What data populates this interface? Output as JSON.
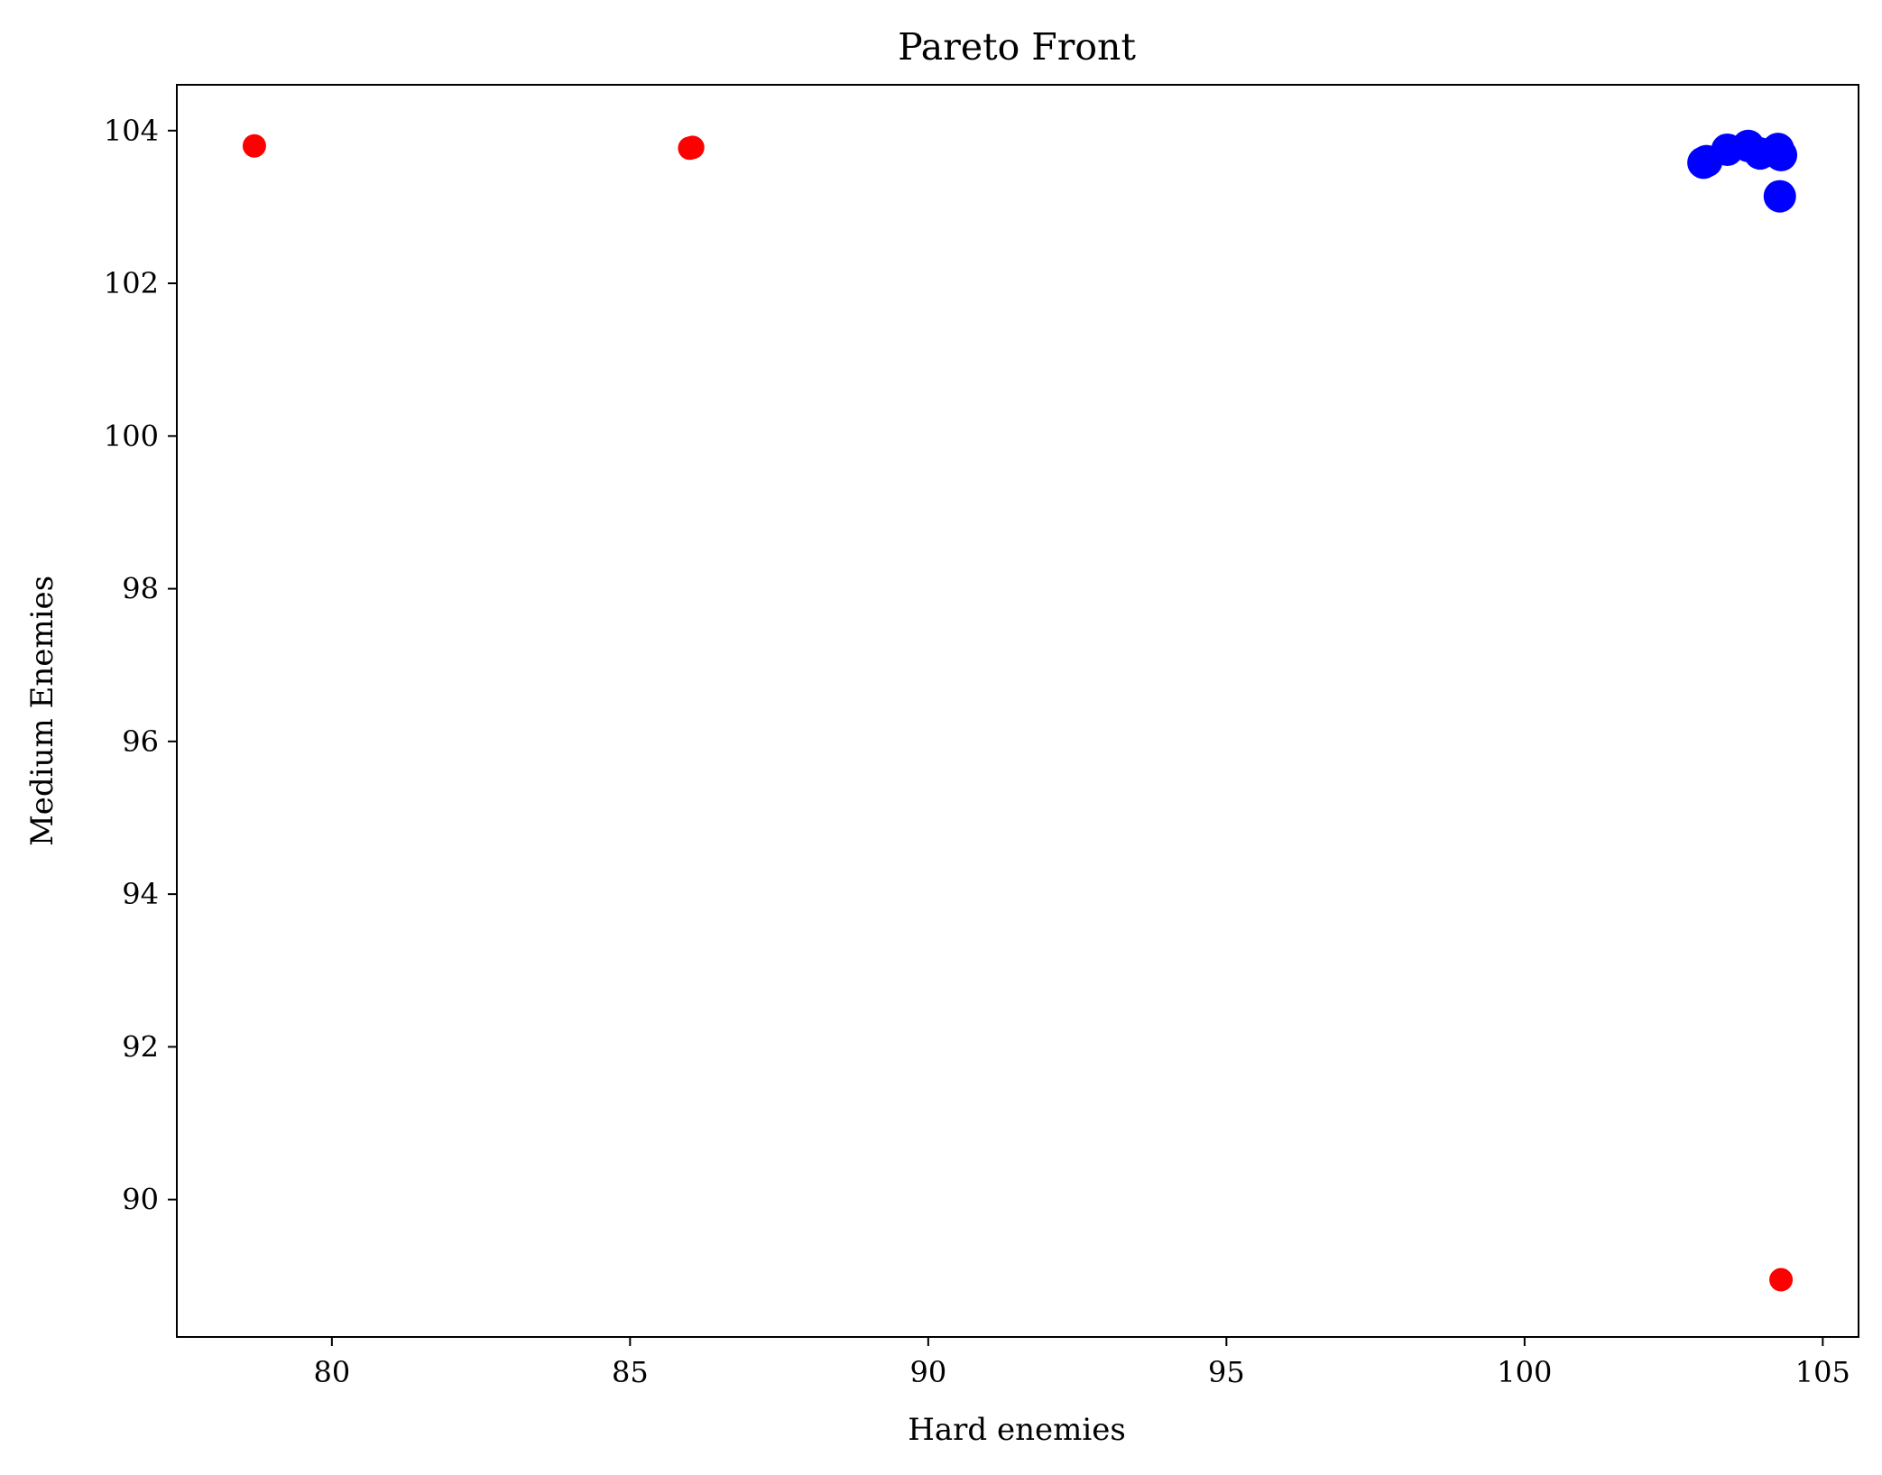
{
  "chart_data": {
    "type": "scatter",
    "title": "Pareto Front",
    "xlabel": "Hard enemies",
    "ylabel": "Medium Enemies",
    "xlim": [
      77.4,
      105.6
    ],
    "ylim": [
      88.2,
      104.6
    ],
    "xticks": [
      80,
      85,
      90,
      95,
      100,
      105
    ],
    "yticks": [
      90,
      92,
      94,
      96,
      98,
      100,
      102,
      104
    ],
    "grid": false,
    "legend": "none",
    "series": [
      {
        "color": "#ff0000",
        "points": [
          {
            "x": 78.7,
            "y": 103.8
          },
          {
            "x": 86.05,
            "y": 103.78
          },
          {
            "x": 86.0,
            "y": 103.77
          },
          {
            "x": 104.3,
            "y": 88.95
          }
        ]
      },
      {
        "color": "#0000ff",
        "points": [
          {
            "x": 103.0,
            "y": 103.58
          },
          {
            "x": 103.05,
            "y": 103.6
          },
          {
            "x": 103.4,
            "y": 103.75
          },
          {
            "x": 103.75,
            "y": 103.8
          },
          {
            "x": 103.95,
            "y": 103.7
          },
          {
            "x": 104.25,
            "y": 103.76
          },
          {
            "x": 104.3,
            "y": 103.68
          },
          {
            "x": 104.28,
            "y": 103.14
          }
        ]
      }
    ]
  }
}
